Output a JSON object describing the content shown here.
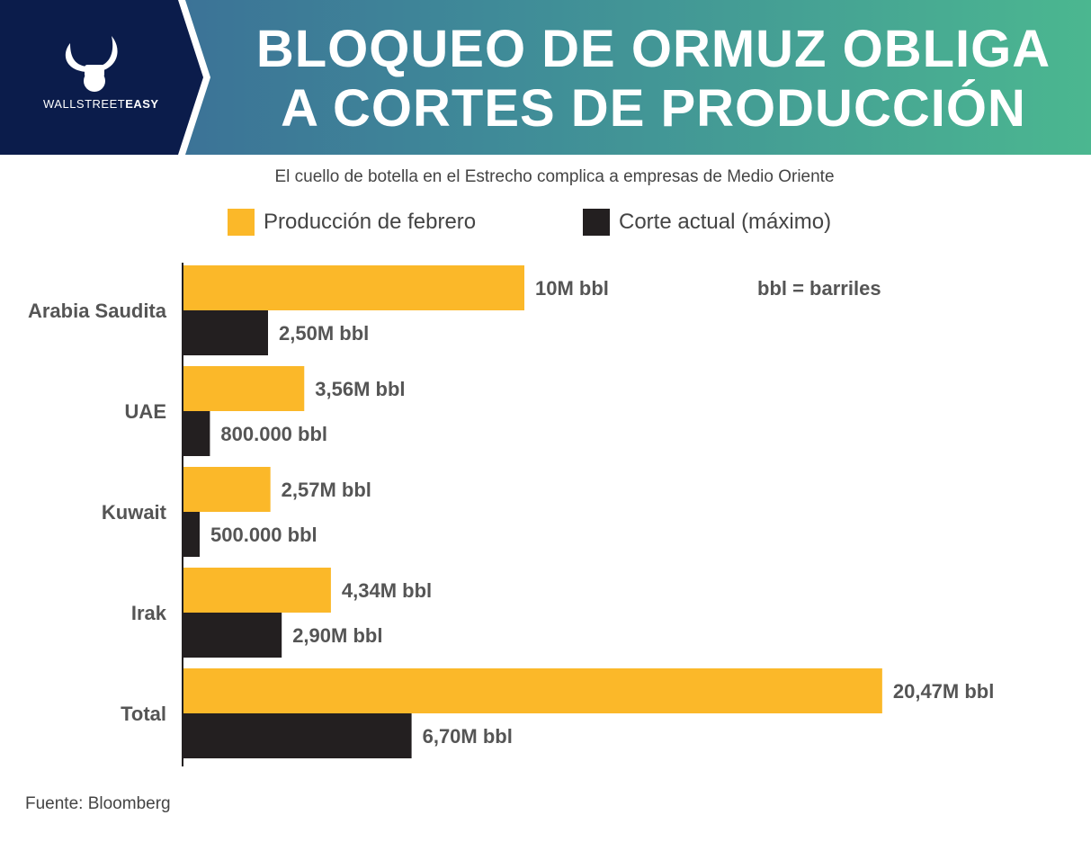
{
  "header": {
    "title_line1": "BLOQUEO DE ORMUZ OBLIGA",
    "title_line2": "A CORTES DE PRODUCCIÓN",
    "logo_light": "WALLSTREET",
    "logo_bold": "EASY"
  },
  "subtitle": "El cuello de botella en el Estrecho complica a empresas de Medio Oriente",
  "source": "Fuente: Bloomberg",
  "colors": {
    "feb": "#fbb829",
    "cut": "#231f20",
    "navy": "#0b1c4b"
  },
  "chart_data": {
    "type": "bar",
    "orientation": "horizontal",
    "categories": [
      "Arabia Saudita",
      "UAE",
      "Kuwait",
      "Irak",
      "Total"
    ],
    "series": [
      {
        "name": "Producción de febrero",
        "values": [
          10,
          3.56,
          2.57,
          4.34,
          20.47
        ],
        "labels": [
          "10M bbl",
          "3,56M bbl",
          "2,57M bbl",
          "4,34M bbl",
          "20,47M bbl"
        ]
      },
      {
        "name": "Corte actual (máximo)",
        "values": [
          2.5,
          0.8,
          0.5,
          2.9,
          6.7
        ],
        "labels": [
          "2,50M bbl",
          "800.000 bbl",
          "500.000 bbl",
          "2,90M bbl",
          "6,70M bbl"
        ]
      }
    ],
    "unit": "M bbl",
    "annotation": "bbl = barriles",
    "xlim": [
      0,
      21
    ]
  }
}
